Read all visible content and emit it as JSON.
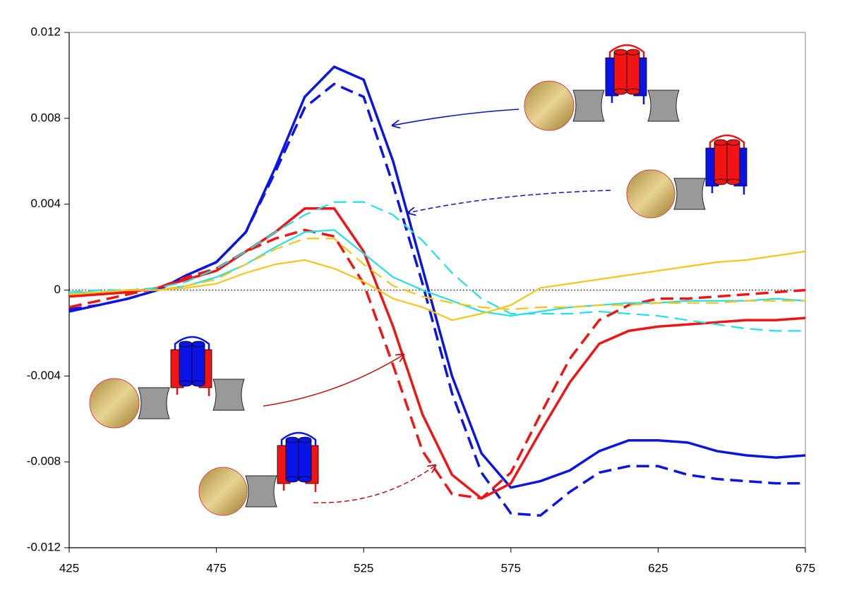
{
  "chart_data": {
    "type": "line",
    "x": [
      425,
      435,
      445,
      455,
      465,
      475,
      485,
      495,
      505,
      515,
      525,
      535,
      545,
      555,
      565,
      575,
      585,
      595,
      605,
      615,
      625,
      635,
      645,
      655,
      665,
      675
    ],
    "xlim": [
      425,
      675
    ],
    "xticks": [
      425,
      475,
      525,
      575,
      625,
      675
    ],
    "ylim": [
      -0.012,
      0.012
    ],
    "yticks": [
      0.012,
      0.008,
      0.004,
      0,
      -0.004,
      -0.008,
      -0.012
    ],
    "zero_line": true,
    "series": [
      {
        "color": "#0a14e6",
        "dashed": false,
        "width": 3.5,
        "values": [
          -0.001,
          -0.0007,
          -0.0004,
          0,
          0.0007,
          0.0013,
          0.0027,
          0.0057,
          0.009,
          0.0104,
          0.0098,
          0.006,
          0.001,
          -0.004,
          -0.0076,
          -0.0092,
          -0.0089,
          -0.0084,
          -0.0075,
          -0.007,
          -0.007,
          -0.0071,
          -0.0075,
          -0.0077,
          -0.0078,
          -0.0077
        ]
      },
      {
        "color": "#0a14e6",
        "dashed": true,
        "width": 3.5,
        "values": [
          -0.0009,
          -0.0007,
          -0.0004,
          0,
          0.0007,
          0.0013,
          0.0027,
          0.0055,
          0.0085,
          0.0096,
          0.009,
          0.0049,
          0.0003,
          -0.0048,
          -0.0085,
          -0.0104,
          -0.0105,
          -0.0094,
          -0.0085,
          -0.0082,
          -0.0082,
          -0.0086,
          -0.0088,
          -0.0089,
          -0.009,
          -0.009
        ]
      },
      {
        "color": "#f01414",
        "dashed": false,
        "width": 3.5,
        "values": [
          -0.0003,
          -0.0002,
          -0.0001,
          0.0001,
          0.0005,
          0.0009,
          0.0018,
          0.0027,
          0.0038,
          0.0038,
          0.0018,
          -0.0017,
          -0.0058,
          -0.0086,
          -0.0097,
          -0.009,
          -0.0066,
          -0.0043,
          -0.0025,
          -0.0019,
          -0.0017,
          -0.0016,
          -0.0015,
          -0.0014,
          -0.0014,
          -0.0013
        ]
      },
      {
        "color": "#f01414",
        "dashed": true,
        "width": 3.5,
        "values": [
          -0.0008,
          -0.0005,
          -0.0002,
          0.0001,
          0.0006,
          0.001,
          0.0018,
          0.0024,
          0.0028,
          0.0025,
          0.0003,
          -0.0035,
          -0.0075,
          -0.0095,
          -0.0097,
          -0.0085,
          -0.0058,
          -0.0032,
          -0.0014,
          -0.0007,
          -0.0004,
          -0.0004,
          -0.0003,
          -0.0002,
          -0.0001,
          0
        ]
      },
      {
        "color": "#20e0e8",
        "dashed": false,
        "width": 2.2,
        "values": [
          -0.0001,
          -0.0001,
          0,
          0,
          0.0002,
          0.0006,
          0.0012,
          0.002,
          0.0027,
          0.0028,
          0.0017,
          0.0006,
          0,
          -0.0005,
          -0.001,
          -0.0012,
          -0.001,
          -0.0008,
          -0.0007,
          -0.0006,
          -0.0006,
          -0.0005,
          -0.0005,
          -0.0005,
          -0.0004,
          -0.0005
        ]
      },
      {
        "color": "#20e0e8",
        "dashed": true,
        "width": 2.2,
        "values": [
          -0.0001,
          0,
          0,
          0.0001,
          0.0004,
          0.001,
          0.0018,
          0.0027,
          0.0035,
          0.0041,
          0.0041,
          0.0035,
          0.0023,
          0.0008,
          -0.0004,
          -0.0011,
          -0.0011,
          -0.0011,
          -0.001,
          -0.0011,
          -0.0012,
          -0.0014,
          -0.0016,
          -0.0018,
          -0.0019,
          -0.0019
        ]
      },
      {
        "color": "#f5c518",
        "dashed": false,
        "width": 2.2,
        "values": [
          -0.0002,
          -0.0001,
          0,
          0,
          0.0001,
          0.0003,
          0.0008,
          0.0012,
          0.0014,
          0.001,
          0.0004,
          -0.0004,
          -0.0008,
          -0.0014,
          -0.0011,
          -0.0007,
          0.0001,
          0.0003,
          0.0005,
          0.0007,
          0.0009,
          0.0011,
          0.0013,
          0.0014,
          0.0016,
          0.0018
        ]
      },
      {
        "color": "#f5c518",
        "dashed": true,
        "width": 2.2,
        "values": [
          -0.0002,
          -0.0001,
          0,
          0,
          0.0002,
          0.0005,
          0.0012,
          0.0019,
          0.0024,
          0.0024,
          0.0012,
          0.0002,
          -0.0003,
          -0.0006,
          -0.0008,
          -0.0009,
          -0.0008,
          -0.0008,
          -0.0007,
          -0.0007,
          -0.0006,
          -0.0006,
          -0.0006,
          -0.0005,
          -0.0005,
          -0.0005
        ]
      }
    ]
  }
}
